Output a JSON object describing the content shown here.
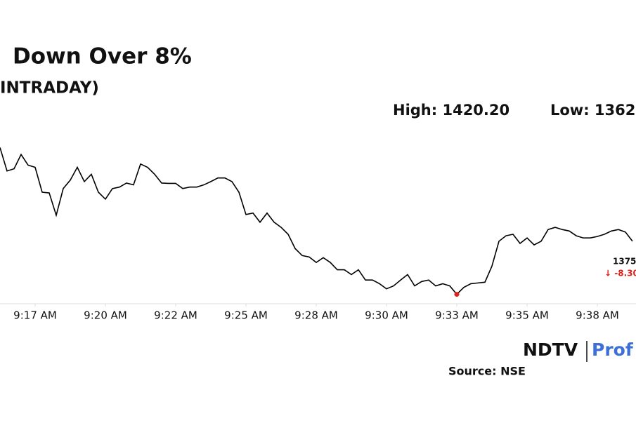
{
  "chart_data": {
    "type": "line",
    "title": "Down Over 8%",
    "subtitle": "INTRADAY)",
    "high_label": "High: 1420.20",
    "low_label": "Low: 1362",
    "last_label": "1375.",
    "change_label": "↓ -8.30",
    "source": "Source: NSE",
    "logo": [
      "NDTV",
      "Prof"
    ],
    "color": "#000000",
    "low_color": "#e0201b",
    "values": [
      1402.1,
      1395.7,
      1396.3,
      1400.2,
      1397.3,
      1396.7,
      1389.9,
      1389.7,
      1383.6,
      1390.9,
      1393.2,
      1396.7,
      1392.8,
      1394.8,
      1389.9,
      1388.0,
      1390.9,
      1391.3,
      1392.4,
      1391.9,
      1397.6,
      1396.7,
      1394.8,
      1392.4,
      1392.3,
      1392.3,
      1390.9,
      1391.3,
      1391.3,
      1391.9,
      1392.8,
      1393.8,
      1393.8,
      1392.8,
      1389.9,
      1383.8,
      1384.2,
      1381.7,
      1384.2,
      1381.7,
      1380.3,
      1378.4,
      1374.5,
      1372.6,
      1372.2,
      1370.7,
      1372.0,
      1370.7,
      1368.7,
      1368.7,
      1367.4,
      1368.7,
      1365.9,
      1365.9,
      1364.9,
      1363.5,
      1364.3,
      1365.9,
      1367.4,
      1364.3,
      1365.5,
      1365.9,
      1364.3,
      1364.9,
      1364.3,
      1362.0,
      1363.9,
      1364.9,
      1365.1,
      1365.3,
      1369.7,
      1376.5,
      1378.0,
      1378.4,
      1375.9,
      1377.4,
      1375.5,
      1376.5,
      1379.7,
      1380.3,
      1379.7,
      1379.3,
      1378.0,
      1377.4,
      1377.4,
      1377.8,
      1378.4,
      1379.3,
      1379.7,
      1379.0,
      1376.5
    ],
    "xlim": [
      0,
      90
    ],
    "ylim": [
      1360,
      1406
    ],
    "xticks": [
      {
        "value": 5,
        "label": "9:17 AM"
      },
      {
        "value": 15,
        "label": "9:20 AM"
      },
      {
        "value": 25,
        "label": "9:22 AM"
      },
      {
        "value": 35,
        "label": "9:25 AM"
      },
      {
        "value": 45,
        "label": "9:28 AM"
      },
      {
        "value": 55,
        "label": "9:30 AM"
      },
      {
        "value": 65,
        "label": "9:33 AM"
      },
      {
        "value": 75,
        "label": "9:35 AM"
      },
      {
        "value": 85,
        "label": "9:38 AM"
      }
    ]
  }
}
